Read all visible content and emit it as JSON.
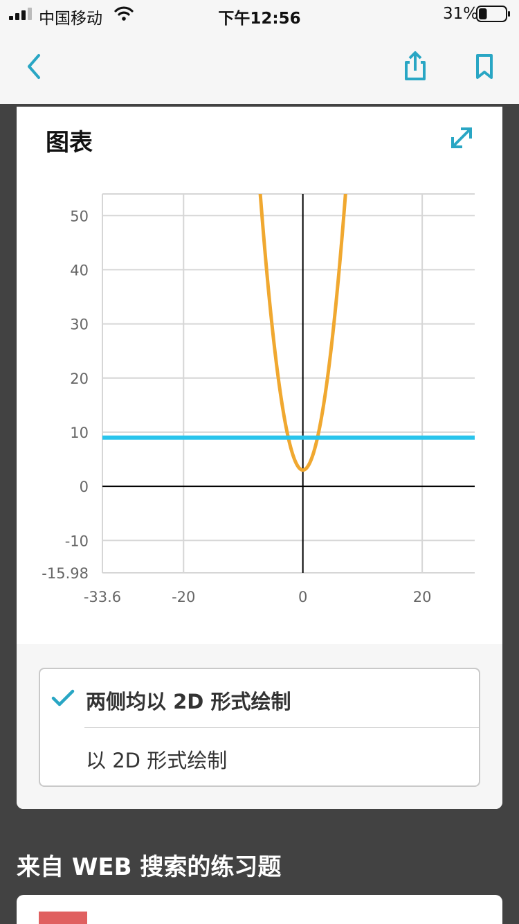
{
  "status_bar": {
    "carrier": "中国移动",
    "time": "下午12:56",
    "battery": "31%",
    "battery_level": 0.31,
    "icons": [
      "signal-icon",
      "wifi-icon",
      "battery-icon"
    ]
  },
  "nav": {
    "icons": [
      "back-icon",
      "share-icon",
      "bookmark-icon"
    ],
    "accent_color": "#29a6c4"
  },
  "graph_card": {
    "title": "图表",
    "expand_icon": "expand-icon"
  },
  "chart_data": {
    "type": "line",
    "title": "",
    "xlabel": "",
    "ylabel": "",
    "xlim": [
      -33.6,
      28.8
    ],
    "ylim": [
      -15.98,
      54
    ],
    "x_ticks": [
      "-33.6",
      "-20",
      "0",
      "20"
    ],
    "x_tick_values": [
      -33.6,
      -20,
      0,
      20
    ],
    "y_ticks": [
      "50",
      "40",
      "30",
      "20",
      "10",
      "0",
      "-10",
      "-15.98"
    ],
    "y_tick_values": [
      50,
      40,
      30,
      20,
      10,
      0,
      -10,
      -15.98
    ],
    "grid": true,
    "series": [
      {
        "kind": "parabola",
        "a": 1,
        "h": 0,
        "k": 3,
        "color": "#f0a830",
        "vertex": [
          0,
          3
        ]
      },
      {
        "kind": "constant",
        "y": 9,
        "color": "#29c4ec"
      }
    ]
  },
  "options": {
    "items": [
      {
        "label": "两侧均以 2D 形式绘制",
        "selected": true
      },
      {
        "label": "以 2D 形式绘制",
        "selected": false
      }
    ]
  },
  "section": {
    "title": "来自 WEB 搜索的练习题"
  }
}
